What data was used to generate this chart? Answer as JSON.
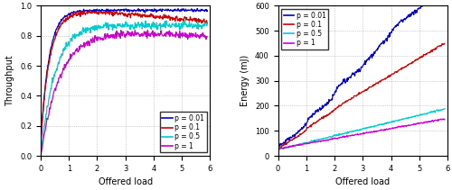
{
  "left": {
    "xlabel": "Offered load",
    "ylabel": "Throughput",
    "xlim": [
      0,
      6
    ],
    "ylim": [
      0,
      1.0
    ],
    "yticks": [
      0,
      0.2,
      0.4,
      0.6,
      0.8,
      1.0
    ],
    "xticks": [
      0,
      1,
      2,
      3,
      4,
      5,
      6
    ],
    "legend_labels": [
      "p = 0.01",
      "p = 0.1",
      "p = 0.5",
      "p = 1"
    ],
    "colors": [
      "#0000cc",
      "#cc0000",
      "#00cccc",
      "#cc00cc"
    ]
  },
  "right": {
    "xlabel": "Offered load",
    "ylabel": "Energy (mJ)",
    "xlim": [
      0,
      6
    ],
    "ylim": [
      0,
      600
    ],
    "yticks": [
      0,
      100,
      200,
      300,
      400,
      500,
      600
    ],
    "xticks": [
      0,
      1,
      2,
      3,
      4,
      5,
      6
    ],
    "legend_labels": [
      "p = 0.01",
      "p = 0.1",
      "p = 0.5",
      "p = 1"
    ],
    "colors": [
      "#0000cc",
      "#cc0000",
      "#00cccc",
      "#cc00cc"
    ]
  }
}
